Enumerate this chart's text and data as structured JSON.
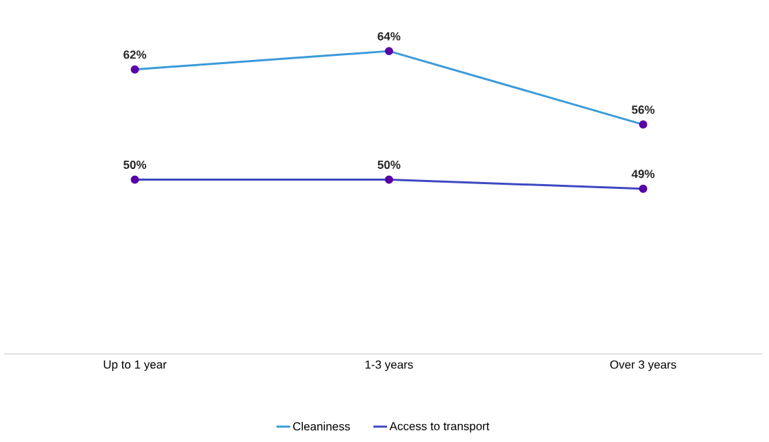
{
  "chart_data": {
    "type": "line",
    "categories": [
      "Up to 1 year",
      "1-3 years",
      "Over 3 years"
    ],
    "series": [
      {
        "name": "Cleaniness",
        "color": "#3a9ad9",
        "values": [
          62,
          64,
          56
        ],
        "value_labels": [
          "62%",
          "64%",
          "56%"
        ]
      },
      {
        "name": "Access to transport",
        "color": "#3f48c0",
        "values": [
          50,
          50,
          49
        ],
        "value_labels": [
          "50%",
          "50%",
          "49%"
        ]
      }
    ],
    "marker": "circle",
    "legend": "bottom",
    "grid": false
  }
}
